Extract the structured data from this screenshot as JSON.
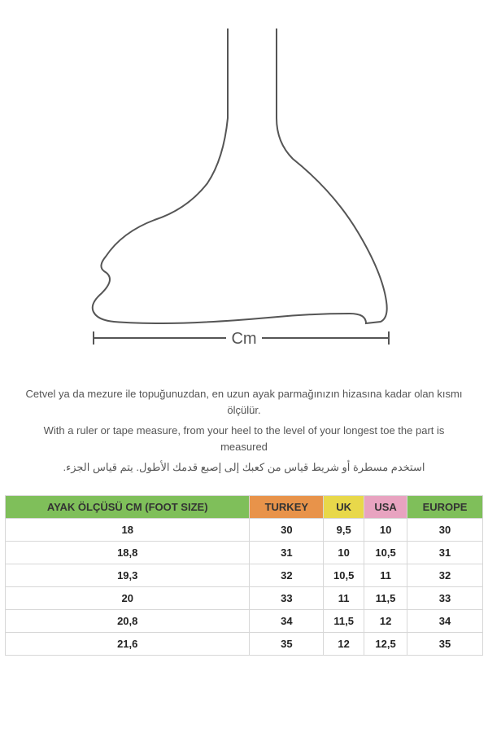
{
  "diagram": {
    "cm_label": "Cm",
    "stroke_color": "#555555",
    "stroke_width": 2,
    "bracket_color": "#555555"
  },
  "instructions": {
    "turkish": "Cetvel ya da mezure ile topuğunuzdan, en uzun ayak parmağınızın hizasına kadar olan kısmı ölçülür.",
    "english": "With a ruler or tape measure, from your heel to the level of your longest toe the part is measured",
    "arabic": "استخدم مسطرة أو شريط قياس من كعبك إلى إصبع قدمك الأطول. يتم قياس الجزء."
  },
  "table": {
    "headers": {
      "foot_size": "AYAK ÖLÇÜSÜ CM (FOOT SIZE)",
      "turkey": "TURKEY",
      "uk": "UK",
      "usa": "USA",
      "europe": "EUROPE"
    },
    "header_colors": {
      "foot_size": "#7fbf5a",
      "turkey": "#e8934a",
      "uk": "#e8d84a",
      "usa": "#e8a3c0",
      "europe": "#7fbf5a"
    },
    "rows": [
      {
        "foot": "18",
        "turkey": "30",
        "uk": "9,5",
        "usa": "10",
        "europe": "30"
      },
      {
        "foot": "18,8",
        "turkey": "31",
        "uk": "10",
        "usa": "10,5",
        "europe": "31"
      },
      {
        "foot": "19,3",
        "turkey": "32",
        "uk": "10,5",
        "usa": "11",
        "europe": "32"
      },
      {
        "foot": "20",
        "turkey": "33",
        "uk": "11",
        "usa": "11,5",
        "europe": "33"
      },
      {
        "foot": "20,8",
        "turkey": "34",
        "uk": "11,5",
        "usa": "12",
        "europe": "34"
      },
      {
        "foot": "21,6",
        "turkey": "35",
        "uk": "12",
        "usa": "12,5",
        "europe": "35"
      }
    ]
  }
}
